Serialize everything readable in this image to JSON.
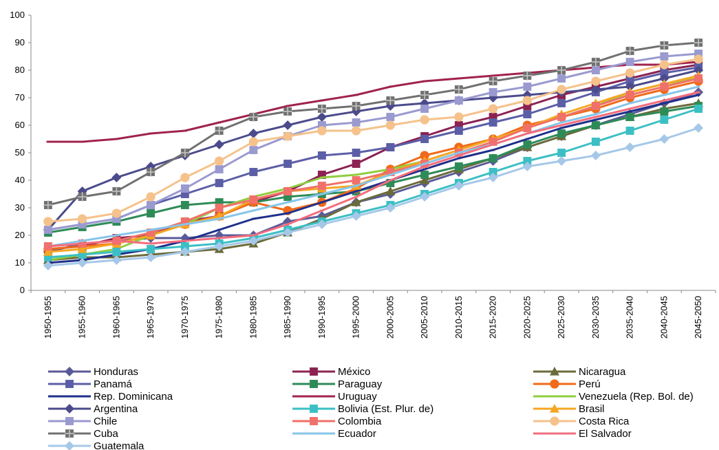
{
  "chart_data": {
    "type": "line",
    "title": "",
    "xlabel": "",
    "ylabel": "",
    "ylim": [
      0,
      100
    ],
    "yticks": [
      0,
      10,
      20,
      30,
      40,
      50,
      60,
      70,
      80,
      90,
      100
    ],
    "grid": false,
    "legend_placement": "bottom",
    "categories": [
      "1950-1955",
      "1955-1960",
      "1960-1965",
      "1965-1970",
      "1970-1975",
      "1975-1980",
      "1980-1985",
      "1985-1990",
      "1990-1995",
      "1995-2000",
      "2000-2005",
      "2005-2010",
      "2010-2015",
      "2015-2020",
      "2020-2025",
      "2025-2030",
      "2030-2035",
      "2035-2040",
      "2040-2045",
      "2045-2050"
    ],
    "series": [
      {
        "name": "Honduras",
        "color": "#5a5a99",
        "marker": "diamond",
        "values": [
          14,
          17,
          18,
          19,
          19,
          20,
          20,
          25,
          27,
          32,
          35,
          39,
          43,
          47,
          52,
          56,
          60,
          64,
          68,
          72
        ]
      },
      {
        "name": "México",
        "color": "#8b2252",
        "marker": "square",
        "values": [
          15,
          16,
          19,
          20,
          25,
          27,
          32,
          36,
          42,
          46,
          52,
          56,
          60,
          63,
          67,
          71,
          74,
          77,
          80,
          82
        ]
      },
      {
        "name": "Nicaragua",
        "color": "#6b6b3a",
        "marker": "triangle",
        "values": [
          11,
          12,
          12,
          13,
          14,
          15,
          17,
          21,
          26,
          32,
          36,
          40,
          44,
          48,
          52,
          56,
          60,
          63,
          66,
          68
        ]
      },
      {
        "name": "Panamá",
        "color": "#5b5ea6",
        "marker": "square",
        "values": [
          22,
          24,
          26,
          31,
          35,
          39,
          43,
          46,
          49,
          50,
          52,
          55,
          58,
          61,
          64,
          68,
          72,
          76,
          79,
          81
        ]
      },
      {
        "name": "Paraguay",
        "color": "#2e8b57",
        "marker": "square",
        "values": [
          21,
          23,
          25,
          28,
          31,
          32,
          32,
          34,
          35,
          36,
          39,
          42,
          45,
          48,
          53,
          57,
          60,
          63,
          65,
          67
        ]
      },
      {
        "name": "Perú",
        "color": "#f06a1a",
        "marker": "circle",
        "values": [
          15,
          16,
          17,
          20,
          24,
          27,
          32,
          29,
          32,
          37,
          44,
          49,
          52,
          55,
          60,
          63,
          66,
          70,
          73,
          76
        ]
      },
      {
        "name": "Rep. Dominicana",
        "color": "#1f2f8a",
        "marker": "dash",
        "values": [
          10,
          11,
          13,
          15,
          18,
          22,
          26,
          28,
          32,
          36,
          40,
          44,
          48,
          51,
          55,
          59,
          62,
          65,
          68,
          71
        ]
      },
      {
        "name": "Uruguay",
        "color": "#a0224d",
        "marker": "dash",
        "values": [
          54,
          54,
          55,
          57,
          58,
          61,
          64,
          67,
          69,
          71,
          74,
          76,
          77,
          78,
          79,
          80,
          81,
          82,
          82,
          83
        ]
      },
      {
        "name": "Venezuela (Rep. Bol. de)",
        "color": "#8fce3f",
        "marker": "dash",
        "values": [
          11,
          13,
          15,
          20,
          24,
          30,
          34,
          37,
          41,
          42,
          44,
          47,
          51,
          55,
          59,
          63,
          67,
          72,
          75,
          77
        ]
      },
      {
        "name": "Argentina",
        "color": "#4b4b8c",
        "marker": "diamond",
        "values": [
          22,
          36,
          41,
          45,
          49,
          53,
          57,
          60,
          63,
          65,
          67,
          68,
          69,
          70,
          71,
          72,
          73,
          74,
          77,
          80
        ]
      },
      {
        "name": "Bolivia (Est. Plur. de)",
        "color": "#3bbfc4",
        "marker": "square",
        "values": [
          12,
          13,
          14,
          15,
          16,
          17,
          19,
          22,
          25,
          28,
          31,
          35,
          39,
          43,
          47,
          50,
          54,
          58,
          62,
          66
        ]
      },
      {
        "name": "Brasil",
        "color": "#f5a623",
        "marker": "triangle",
        "values": [
          14,
          15,
          17,
          20,
          24,
          27,
          33,
          36,
          37,
          38,
          43,
          47,
          51,
          55,
          59,
          64,
          68,
          72,
          75,
          78
        ]
      },
      {
        "name": "Chile",
        "color": "#9a9ad0",
        "marker": "square",
        "values": [
          22,
          24,
          26,
          31,
          37,
          44,
          51,
          56,
          60,
          61,
          63,
          66,
          69,
          72,
          74,
          77,
          80,
          83,
          85,
          86
        ]
      },
      {
        "name": "Colombia",
        "color": "#f0706a",
        "marker": "square",
        "values": [
          16,
          17,
          18,
          21,
          25,
          30,
          33,
          36,
          38,
          40,
          43,
          46,
          50,
          54,
          59,
          63,
          67,
          71,
          74,
          77
        ]
      },
      {
        "name": "Costa Rica",
        "color": "#f5c28b",
        "marker": "circle",
        "values": [
          25,
          26,
          28,
          34,
          41,
          47,
          54,
          56,
          58,
          58,
          60,
          62,
          63,
          66,
          69,
          73,
          76,
          79,
          82,
          84
        ]
      },
      {
        "name": "Cuba",
        "color": "#707070",
        "marker": "plus",
        "values": [
          31,
          34,
          36,
          43,
          50,
          58,
          63,
          65,
          66,
          67,
          69,
          71,
          73,
          76,
          78,
          80,
          83,
          87,
          89,
          90
        ]
      },
      {
        "name": "Ecuador",
        "color": "#87c5e8",
        "marker": "dash",
        "values": [
          16,
          18,
          20,
          22,
          24,
          26,
          29,
          32,
          35,
          38,
          42,
          46,
          50,
          53,
          57,
          61,
          64,
          68,
          71,
          74
        ]
      },
      {
        "name": "El Salvador",
        "color": "#f26d7d",
        "marker": "dash",
        "values": [
          16,
          17,
          18,
          17,
          18,
          19,
          20,
          24,
          29,
          34,
          40,
          45,
          49,
          53,
          57,
          60,
          63,
          66,
          69,
          72
        ]
      },
      {
        "name": "Guatemala",
        "color": "#a6c8e8",
        "marker": "diamond",
        "values": [
          9,
          10,
          11,
          12,
          14,
          16,
          18,
          21,
          24,
          27,
          30,
          34,
          38,
          41,
          45,
          47,
          49,
          52,
          55,
          59
        ]
      }
    ]
  }
}
